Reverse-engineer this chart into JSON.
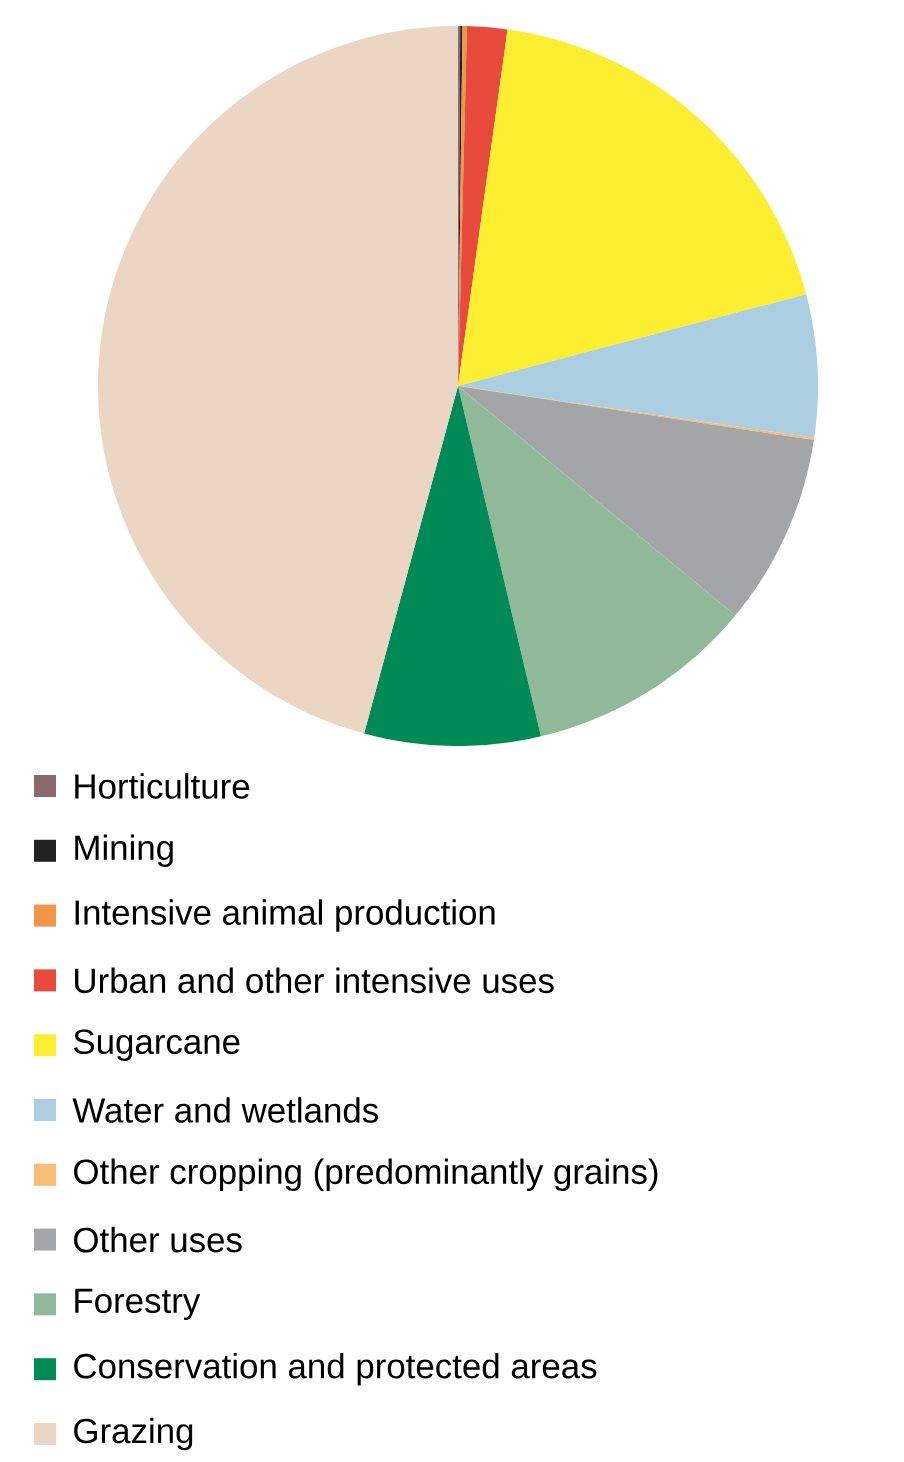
{
  "chart_data": {
    "type": "pie",
    "legend": "bottom",
    "categories": [
      "Horticulture",
      "Mining",
      "Intensive animal production",
      "Urban and other intensive uses",
      "Sugarcane",
      "Water and wetlands",
      "Other cropping (predominantly grains)",
      "Other uses",
      "Forestry",
      "Conservation and protected areas",
      "Grazing"
    ],
    "values": [
      0.1,
      0.1,
      0.2,
      1.8,
      18.7,
      6.4,
      0.1,
      8.6,
      10.3,
      7.9,
      45.8
    ],
    "colors": [
      "#8a6a70",
      "#222222",
      "#f0964a",
      "#e84a3c",
      "#fcee30",
      "#abcfe0",
      "#f9bb78",
      "#a4a5a7",
      "#8fb998",
      "#008a55",
      "#ead6c2"
    ]
  }
}
